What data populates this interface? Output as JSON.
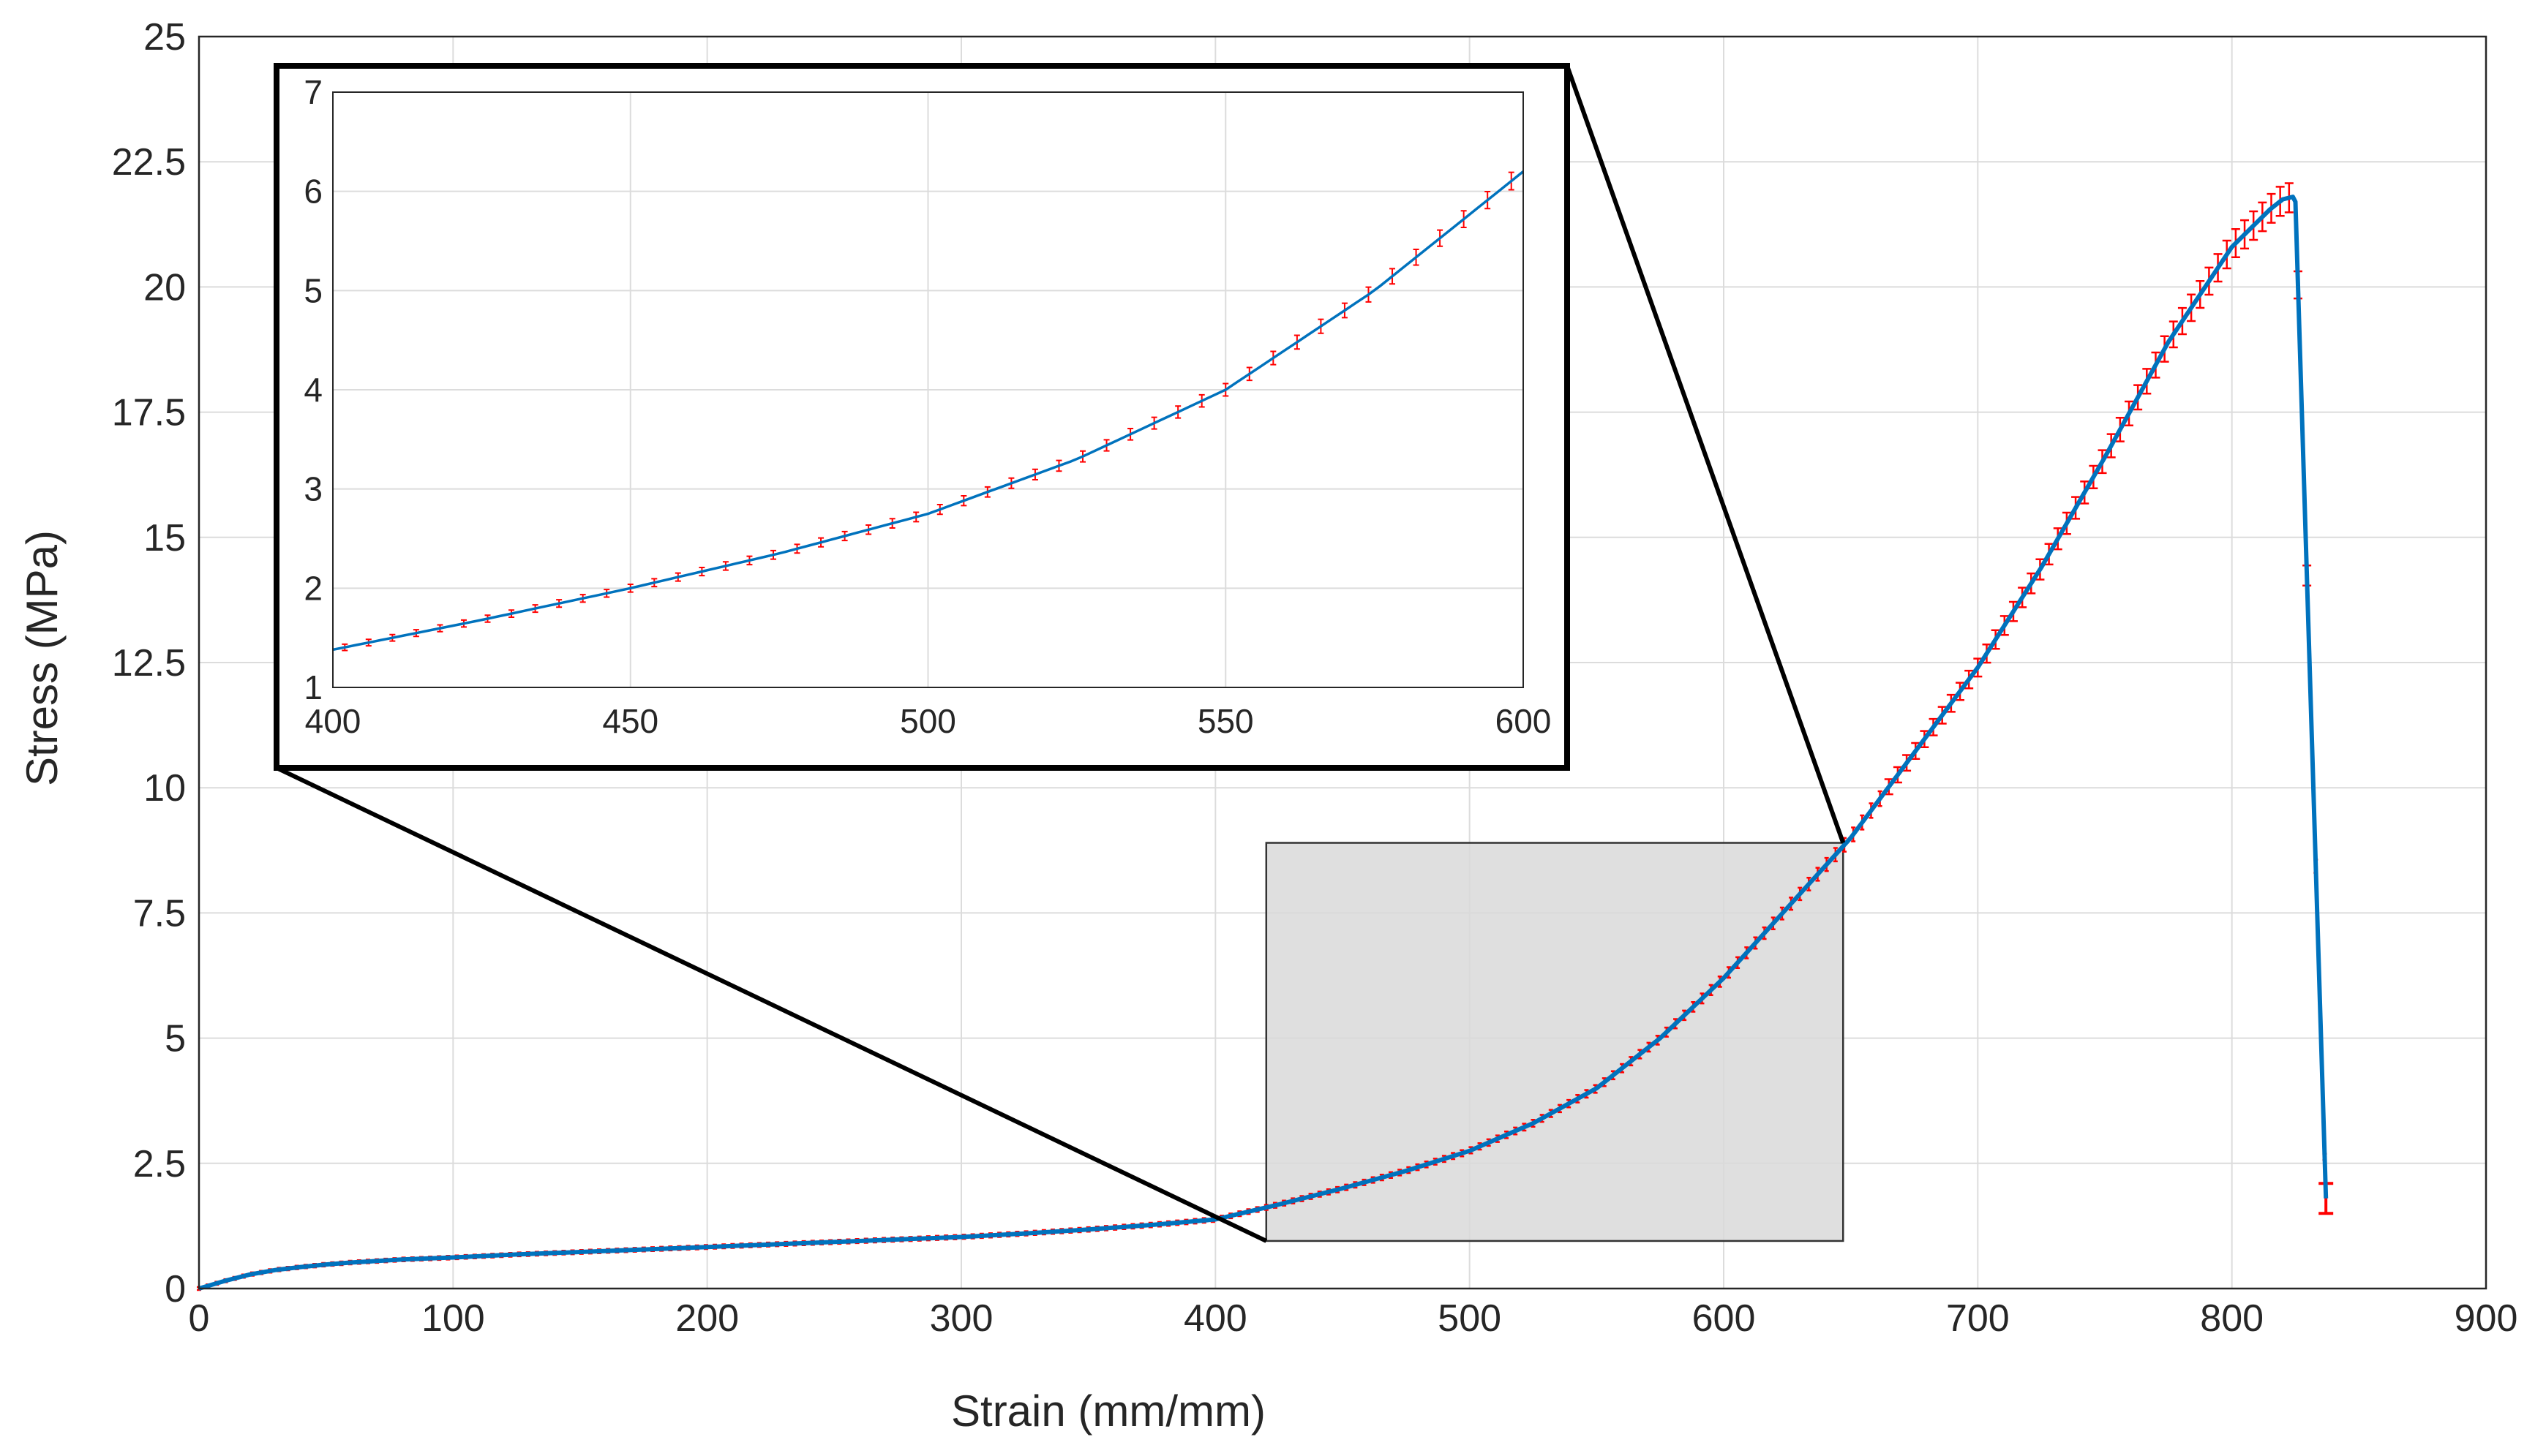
{
  "chart_data": {
    "type": "line",
    "xlabel": "Strain (mm/mm)",
    "ylabel": "Stress (MPa)",
    "xlim": [
      0,
      900
    ],
    "ylim": [
      0,
      25
    ],
    "xticks": [
      "0",
      "100",
      "200",
      "300",
      "400",
      "500",
      "600",
      "700",
      "800",
      "900"
    ],
    "yticks": [
      "0",
      "2.5",
      "5",
      "7.5",
      "10",
      "12.5",
      "15",
      "17.5",
      "20",
      "22.5",
      "25"
    ],
    "grid": true,
    "colors": {
      "line": "#0072BD",
      "error_bars": "#FF0000",
      "zoom_box": "#D9D9D9"
    },
    "series": [
      {
        "x": [
          0,
          10,
          20,
          30,
          40,
          50,
          60,
          80,
          100,
          125,
          150,
          175,
          200,
          225,
          250,
          275,
          300,
          325,
          350,
          375,
          400,
          425,
          450,
          475,
          500,
          525,
          550,
          575,
          600,
          625,
          650,
          675,
          700,
          725,
          750,
          775,
          800,
          810,
          815,
          820,
          824,
          825,
          837
        ],
        "y": [
          0,
          0.15,
          0.28,
          0.37,
          0.43,
          0.48,
          0.52,
          0.58,
          0.62,
          0.68,
          0.73,
          0.78,
          0.83,
          0.88,
          0.93,
          0.98,
          1.03,
          1.1,
          1.18,
          1.27,
          1.38,
          1.68,
          2.0,
          2.35,
          2.75,
          3.3,
          4.0,
          5.0,
          6.2,
          7.6,
          9.0,
          10.7,
          12.4,
          14.4,
          16.6,
          18.9,
          20.8,
          21.3,
          21.55,
          21.75,
          21.8,
          21.7,
          1.8
        ]
      }
    ],
    "error_bar_range": [
      0,
      837
    ],
    "zoom_region": {
      "xlim": [
        420,
        647
      ],
      "ylim": [
        0.95,
        8.9
      ]
    },
    "inset": {
      "xlim": [
        400,
        600
      ],
      "ylim": [
        1,
        7
      ],
      "xticks": [
        "400",
        "450",
        "500",
        "550",
        "600"
      ],
      "yticks": [
        "1",
        "2",
        "3",
        "4",
        "5",
        "6",
        "7"
      ]
    }
  }
}
